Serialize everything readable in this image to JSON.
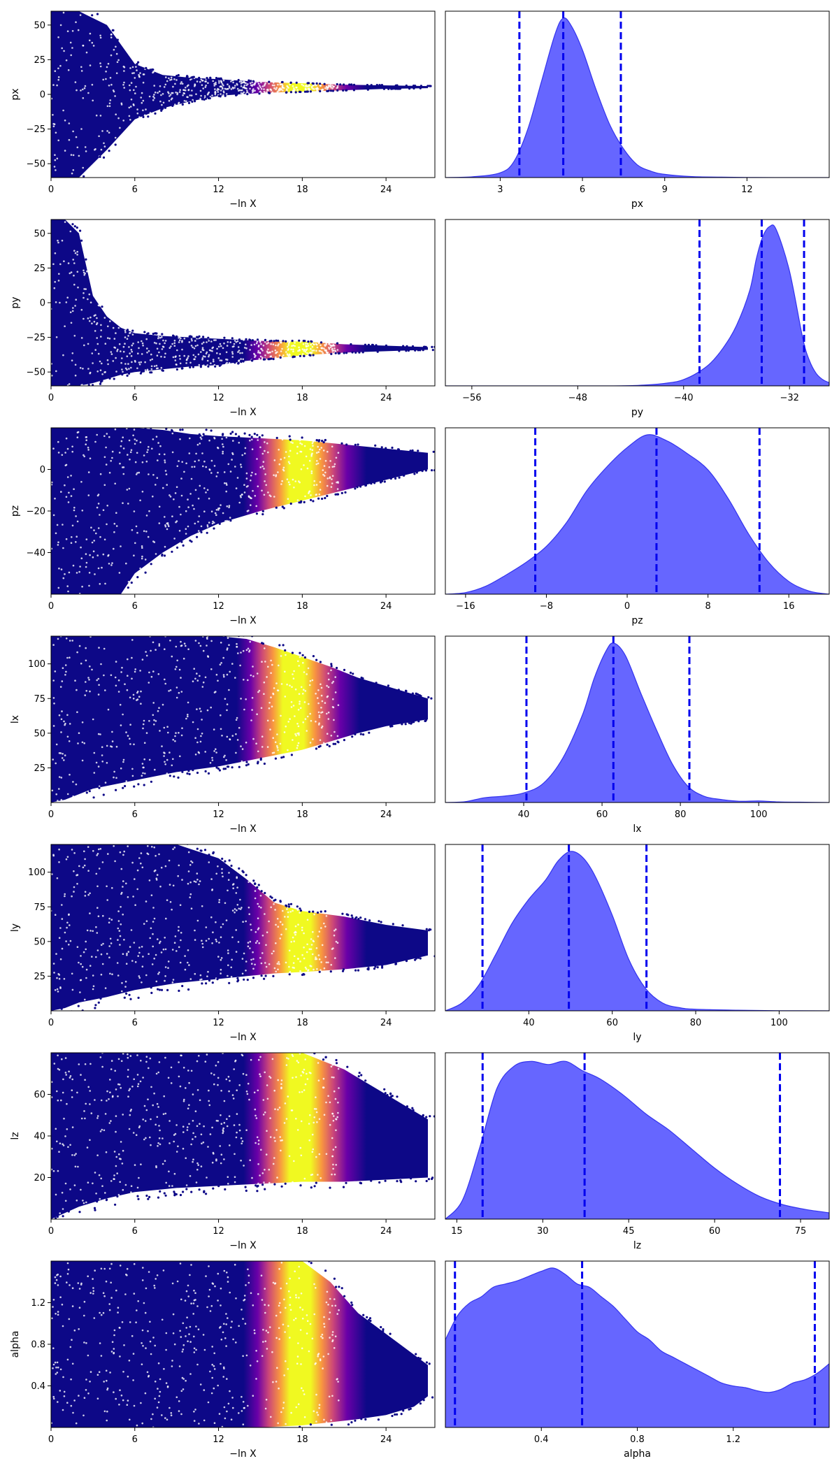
{
  "colors": {
    "scatter_colormap": [
      "#0d0887",
      "#0d0887",
      "#0d0887",
      "#0d0887",
      "#6a00a8",
      "#cc4778",
      "#f89540",
      "#f0f921",
      "#f0f921",
      "#f89540",
      "#cc4778",
      "#6a00a8",
      "#0d0887"
    ],
    "posterior_fill": "#6666ff",
    "posterior_edge": "#3333ee",
    "quantile_line": "#0000ee"
  },
  "chart_data": [
    {
      "type": "scatter",
      "parameter": "px",
      "xlabel": "−ln X",
      "ylabel": "px",
      "xlim": [
        0,
        27.5
      ],
      "ylim": [
        -60,
        60
      ],
      "xticks": [
        0,
        6,
        12,
        18,
        24
      ],
      "yticks": [
        -50,
        -25,
        0,
        25,
        50
      ],
      "envelope": [
        [
          0,
          -60,
          60
        ],
        [
          2,
          -60,
          60
        ],
        [
          4,
          -40,
          50
        ],
        [
          6,
          -18,
          22
        ],
        [
          8,
          -10,
          14
        ],
        [
          10,
          -5,
          12
        ],
        [
          12,
          -1,
          11
        ],
        [
          15,
          1,
          9
        ],
        [
          18,
          2,
          8
        ],
        [
          21,
          3,
          7
        ],
        [
          24,
          4,
          6.5
        ],
        [
          27,
          4.5,
          6
        ]
      ],
      "peak_x": 18
    },
    {
      "type": "area",
      "parameter": "px",
      "xlabel": "px",
      "xlim": [
        1,
        15
      ],
      "xticks": [
        3,
        6,
        9,
        12
      ],
      "x": [
        1,
        2,
        3,
        3.5,
        4,
        4.5,
        5,
        5.3,
        5.6,
        6,
        6.5,
        7,
        7.5,
        8,
        8.5,
        9,
        10,
        11,
        12,
        13,
        15
      ],
      "density": [
        0,
        0.005,
        0.03,
        0.1,
        0.3,
        0.6,
        0.9,
        1.0,
        0.95,
        0.8,
        0.55,
        0.33,
        0.18,
        0.08,
        0.04,
        0.02,
        0.006,
        0.003,
        0.001,
        0,
        0
      ],
      "quantiles": [
        3.7,
        5.3,
        7.4
      ]
    },
    {
      "type": "scatter",
      "parameter": "py",
      "xlabel": "−ln X",
      "ylabel": "py",
      "xlim": [
        0,
        27.5
      ],
      "ylim": [
        -60,
        60
      ],
      "xticks": [
        0,
        6,
        12,
        18,
        24
      ],
      "yticks": [
        -50,
        -25,
        0,
        25,
        50
      ],
      "envelope": [
        [
          0,
          -60,
          60
        ],
        [
          1,
          -60,
          60
        ],
        [
          2,
          -60,
          50
        ],
        [
          3,
          -58,
          5
        ],
        [
          4,
          -55,
          -10
        ],
        [
          5,
          -52,
          -18
        ],
        [
          6,
          -50,
          -22
        ],
        [
          8,
          -48,
          -24
        ],
        [
          10,
          -46,
          -25
        ],
        [
          12,
          -45,
          -26
        ],
        [
          14,
          -42,
          -27
        ],
        [
          16,
          -40,
          -28
        ],
        [
          18,
          -38,
          -28
        ],
        [
          21,
          -36,
          -30
        ],
        [
          24,
          -35,
          -31
        ],
        [
          27,
          -34,
          -32
        ]
      ],
      "peak_x": 18
    },
    {
      "type": "area",
      "parameter": "py",
      "xlabel": "py",
      "xlim": [
        -58,
        -29
      ],
      "xticks": [
        -56,
        -48,
        -40,
        -32
      ],
      "x": [
        -58,
        -46,
        -43,
        -41,
        -40,
        -39,
        -38,
        -37,
        -36,
        -35,
        -34.5,
        -34,
        -33.5,
        -33,
        -32,
        -31,
        -30.5,
        -30,
        -29.5,
        -29
      ],
      "density": [
        0,
        0,
        0.005,
        0.02,
        0.04,
        0.08,
        0.14,
        0.24,
        0.38,
        0.6,
        0.8,
        0.94,
        1.0,
        0.98,
        0.72,
        0.3,
        0.16,
        0.08,
        0.04,
        0.02
      ],
      "quantiles": [
        -38.8,
        -34.1,
        -30.9
      ]
    },
    {
      "type": "scatter",
      "parameter": "pz",
      "xlabel": "−ln X",
      "ylabel": "pz",
      "xlim": [
        0,
        27.5
      ],
      "ylim": [
        -60,
        20
      ],
      "xticks": [
        0,
        6,
        12,
        18,
        24
      ],
      "yticks": [
        -40,
        -20,
        0
      ],
      "envelope": [
        [
          0,
          -60,
          20
        ],
        [
          3,
          -60,
          20
        ],
        [
          5,
          -60,
          20
        ],
        [
          6,
          -50,
          20
        ],
        [
          8,
          -40,
          19
        ],
        [
          10,
          -32,
          17
        ],
        [
          12,
          -26,
          16
        ],
        [
          15,
          -20,
          15
        ],
        [
          18,
          -15,
          14
        ],
        [
          21,
          -10,
          12
        ],
        [
          24,
          -5,
          10
        ],
        [
          27,
          0,
          8
        ]
      ],
      "peak_x": 18
    },
    {
      "type": "area",
      "parameter": "pz",
      "xlabel": "pz",
      "xlim": [
        -18,
        20
      ],
      "xticks": [
        -16,
        -8,
        0,
        8,
        16
      ],
      "x": [
        -18,
        -16,
        -14,
        -12,
        -10,
        -8,
        -6,
        -4,
        -2,
        0,
        2,
        4,
        6,
        8,
        10,
        12,
        14,
        16,
        18,
        20
      ],
      "density": [
        0,
        0.01,
        0.05,
        0.12,
        0.2,
        0.3,
        0.45,
        0.65,
        0.8,
        0.92,
        1.0,
        0.96,
        0.88,
        0.78,
        0.6,
        0.38,
        0.2,
        0.08,
        0.02,
        0
      ],
      "quantiles": [
        -9.1,
        2.9,
        13.1
      ]
    },
    {
      "type": "scatter",
      "parameter": "lx",
      "xlabel": "−ln X",
      "ylabel": "lx",
      "xlim": [
        0,
        27.5
      ],
      "ylim": [
        0,
        120
      ],
      "xticks": [
        0,
        6,
        12,
        18,
        24
      ],
      "yticks": [
        25,
        50,
        75,
        100
      ],
      "envelope": [
        [
          0,
          0,
          120
        ],
        [
          1,
          2,
          120
        ],
        [
          2,
          6,
          120
        ],
        [
          3,
          10,
          120
        ],
        [
          6,
          16,
          120
        ],
        [
          9,
          22,
          120
        ],
        [
          12,
          26,
          120
        ],
        [
          14,
          30,
          118
        ],
        [
          16,
          34,
          112
        ],
        [
          18,
          38,
          105
        ],
        [
          20,
          44,
          98
        ],
        [
          22,
          50,
          90
        ],
        [
          24,
          55,
          84
        ],
        [
          27,
          60,
          75
        ]
      ],
      "peak_x": 17.5
    },
    {
      "type": "area",
      "parameter": "lx",
      "xlabel": "lx",
      "xlim": [
        20,
        118
      ],
      "xticks": [
        40,
        60,
        80,
        100
      ],
      "x": [
        20,
        25,
        30,
        35,
        40,
        45,
        50,
        55,
        58,
        61,
        63,
        66,
        70,
        74,
        78,
        82,
        86,
        90,
        95,
        100,
        105,
        110,
        118
      ],
      "density": [
        0,
        0.005,
        0.03,
        0.04,
        0.06,
        0.12,
        0.28,
        0.55,
        0.78,
        0.95,
        1.0,
        0.92,
        0.68,
        0.45,
        0.24,
        0.1,
        0.04,
        0.02,
        0.008,
        0.01,
        0.004,
        0.002,
        0
      ],
      "quantiles": [
        40.7,
        62.9,
        82.3
      ]
    },
    {
      "type": "scatter",
      "parameter": "ly",
      "xlabel": "−ln X",
      "ylabel": "ly",
      "xlim": [
        0,
        27.5
      ],
      "ylim": [
        0,
        120
      ],
      "xticks": [
        0,
        6,
        12,
        18,
        24
      ],
      "yticks": [
        25,
        50,
        75,
        100
      ],
      "envelope": [
        [
          0,
          0,
          120
        ],
        [
          1,
          2,
          120
        ],
        [
          2,
          6,
          120
        ],
        [
          4,
          10,
          120
        ],
        [
          6,
          15,
          120
        ],
        [
          9,
          20,
          120
        ],
        [
          12,
          23,
          110
        ],
        [
          14,
          25,
          95
        ],
        [
          16,
          27,
          78
        ],
        [
          18,
          28,
          72
        ],
        [
          21,
          30,
          68
        ],
        [
          24,
          33,
          62
        ],
        [
          27,
          40,
          58
        ]
      ],
      "peak_x": 18
    },
    {
      "type": "area",
      "parameter": "ly",
      "xlabel": "ly",
      "xlim": [
        20,
        112
      ],
      "xticks": [
        40,
        60,
        80,
        100
      ],
      "x": [
        20,
        24,
        28,
        32,
        36,
        40,
        44,
        47,
        50,
        53,
        56,
        60,
        64,
        68,
        72,
        76,
        80,
        90,
        100,
        112
      ],
      "density": [
        0,
        0.05,
        0.16,
        0.35,
        0.55,
        0.7,
        0.82,
        0.94,
        1.0,
        0.96,
        0.84,
        0.6,
        0.32,
        0.14,
        0.05,
        0.02,
        0.01,
        0.004,
        0.001,
        0
      ],
      "quantiles": [
        28.9,
        49.6,
        68.2
      ]
    },
    {
      "type": "scatter",
      "parameter": "lz",
      "xlabel": "−ln X",
      "ylabel": "lz",
      "xlim": [
        0,
        27.5
      ],
      "ylim": [
        0,
        80
      ],
      "xticks": [
        0,
        6,
        12,
        18,
        24
      ],
      "yticks": [
        20,
        40,
        60
      ],
      "envelope": [
        [
          0,
          0,
          80
        ],
        [
          1,
          3,
          80
        ],
        [
          2,
          6,
          80
        ],
        [
          4,
          10,
          80
        ],
        [
          6,
          13,
          80
        ],
        [
          9,
          15,
          80
        ],
        [
          12,
          16,
          80
        ],
        [
          15,
          17,
          80
        ],
        [
          18,
          18,
          80
        ],
        [
          21,
          18,
          72
        ],
        [
          24,
          19,
          60
        ],
        [
          27,
          20,
          48
        ]
      ],
      "peak_x": 18
    },
    {
      "type": "area",
      "parameter": "lz",
      "xlabel": "lz",
      "xlim": [
        13,
        80
      ],
      "xticks": [
        15,
        30,
        45,
        60,
        75
      ],
      "x": [
        13,
        16,
        19,
        22,
        25,
        28,
        31,
        34,
        37,
        40,
        44,
        48,
        52,
        56,
        60,
        64,
        68,
        72,
        76,
        80
      ],
      "density": [
        0,
        0.12,
        0.45,
        0.82,
        0.96,
        0.99,
        0.97,
        0.99,
        0.93,
        0.88,
        0.78,
        0.66,
        0.56,
        0.44,
        0.32,
        0.22,
        0.14,
        0.09,
        0.06,
        0.04
      ],
      "quantiles": [
        19.5,
        37.3,
        71.4
      ]
    },
    {
      "type": "scatter",
      "parameter": "alpha",
      "xlabel": "−ln X",
      "ylabel": "alpha",
      "xlim": [
        0,
        27.5
      ],
      "ylim": [
        0,
        1.6
      ],
      "xticks": [
        0,
        6,
        12,
        18,
        24
      ],
      "yticks": [
        0.4,
        0.8,
        1.2
      ],
      "envelope": [
        [
          0,
          0,
          1.6
        ],
        [
          6,
          0,
          1.6
        ],
        [
          12,
          0,
          1.6
        ],
        [
          15,
          0,
          1.6
        ],
        [
          18,
          0.02,
          1.6
        ],
        [
          20,
          0.05,
          1.4
        ],
        [
          22,
          0.08,
          1.1
        ],
        [
          24,
          0.12,
          0.9
        ],
        [
          26,
          0.2,
          0.7
        ],
        [
          27,
          0.3,
          0.6
        ]
      ],
      "peak_x": 18
    },
    {
      "type": "area",
      "parameter": "alpha",
      "xlabel": "alpha",
      "xlim": [
        0,
        1.6
      ],
      "xticks": [
        0.4,
        0.8,
        1.2
      ],
      "x": [
        0,
        0.05,
        0.1,
        0.15,
        0.2,
        0.25,
        0.3,
        0.35,
        0.4,
        0.45,
        0.5,
        0.55,
        0.6,
        0.65,
        0.7,
        0.75,
        0.8,
        0.85,
        0.9,
        0.95,
        1.0,
        1.05,
        1.1,
        1.15,
        1.2,
        1.25,
        1.3,
        1.35,
        1.4,
        1.45,
        1.5,
        1.55,
        1.6
      ],
      "density": [
        0.55,
        0.7,
        0.78,
        0.82,
        0.88,
        0.9,
        0.92,
        0.95,
        0.98,
        1.0,
        0.96,
        0.9,
        0.88,
        0.82,
        0.76,
        0.68,
        0.6,
        0.55,
        0.48,
        0.44,
        0.4,
        0.36,
        0.32,
        0.28,
        0.26,
        0.25,
        0.23,
        0.22,
        0.24,
        0.28,
        0.3,
        0.34,
        0.4
      ],
      "quantiles": [
        0.04,
        0.57,
        1.54
      ]
    }
  ]
}
